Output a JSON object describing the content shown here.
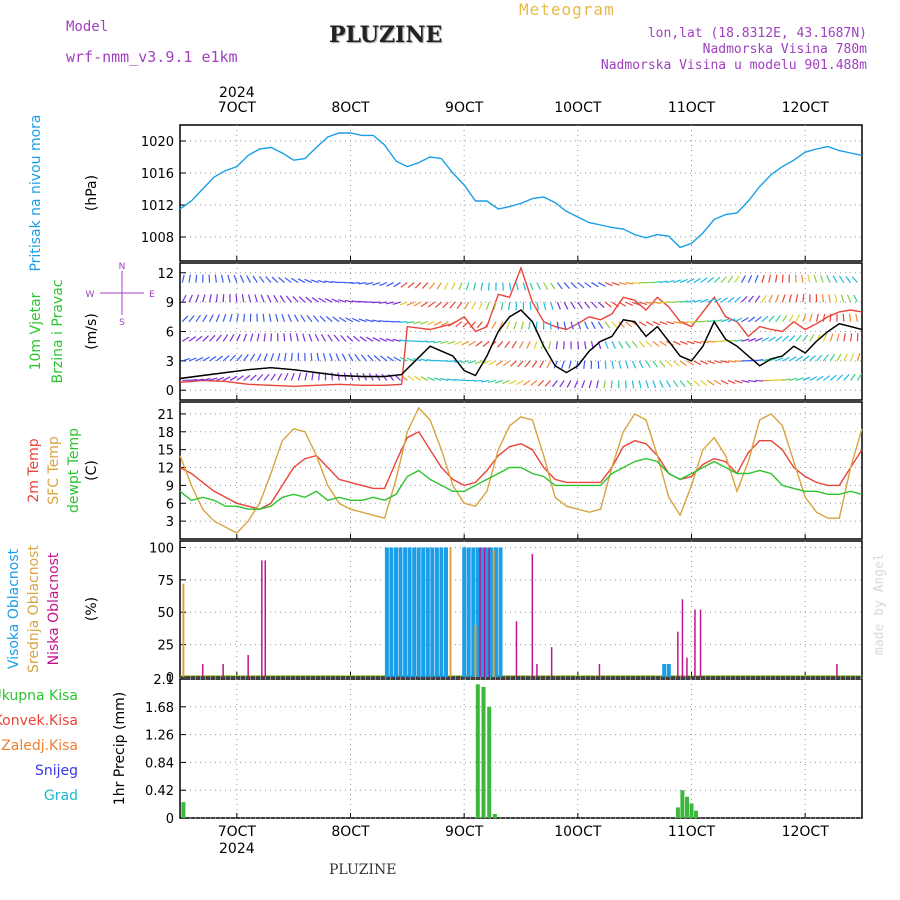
{
  "header": {
    "title": "PLUZINE",
    "subtitle": "Meteogram",
    "model_label": "Model",
    "model_value": "wrf-nmm_v3.9.1  e1km",
    "lonlat": "lon,lat (18.8312E, 43.1687N)",
    "elevation": "Nadmorska Visina 780m",
    "model_elevation": "Nadmorska Visina u modelu 901.488m",
    "footer": "PLUZINE",
    "watermark": "made by Angel"
  },
  "colors": {
    "pressure": "#1a9ee8",
    "temp2m": "#e8443a",
    "sfc": "#d9a440",
    "dew": "#2ec42e",
    "high_cloud": "#1a9ee8",
    "mid_cloud": "#d9a440",
    "low_cloud": "#c0148c",
    "precip": "#3cb83c",
    "wind_mean": "#000000",
    "wind_gust": "#e8443a"
  },
  "time_axis": {
    "year": "2024",
    "ticks": [
      "7OCT",
      "8OCT",
      "9OCT",
      "10OCT",
      "11OCT",
      "12OCT"
    ],
    "tick_pos": [
      7,
      8,
      9,
      10,
      11,
      12
    ],
    "range": [
      6.5,
      12.5
    ]
  },
  "chart_data": [
    {
      "type": "line",
      "name": "pressure",
      "ylabel_left": "Pritisak na nivou mora",
      "unit": "(hPa)",
      "ylim": [
        1005,
        1022
      ],
      "yticks": [
        1008,
        1012,
        1016,
        1020
      ],
      "series": [
        {
          "color_key": "pressure",
          "x": [
            6.5,
            6.6,
            6.7,
            6.8,
            6.9,
            7.0,
            7.1,
            7.2,
            7.3,
            7.4,
            7.5,
            7.6,
            7.7,
            7.8,
            7.9,
            8.0,
            8.1,
            8.2,
            8.3,
            8.4,
            8.5,
            8.6,
            8.7,
            8.8,
            8.9,
            9.0,
            9.1,
            9.2,
            9.3,
            9.4,
            9.5,
            9.6,
            9.7,
            9.8,
            9.9,
            10.0,
            10.1,
            10.2,
            10.3,
            10.4,
            10.5,
            10.6,
            10.7,
            10.8,
            10.9,
            11.0,
            11.1,
            11.2,
            11.3,
            11.4,
            11.5,
            11.6,
            11.7,
            11.8,
            11.9,
            12.0,
            12.1,
            12.2,
            12.3,
            12.4,
            12.5
          ],
          "y": [
            1011.5,
            1012.5,
            1014,
            1015.5,
            1016.3,
            1016.8,
            1018.2,
            1019,
            1019.2,
            1018.5,
            1017.6,
            1017.8,
            1019.2,
            1020.5,
            1021,
            1021,
            1020.7,
            1020.7,
            1019.5,
            1017.5,
            1016.8,
            1017.3,
            1018,
            1017.8,
            1016,
            1014.5,
            1012.5,
            1012.5,
            1011.5,
            1011.8,
            1012.2,
            1012.8,
            1013,
            1012.3,
            1011.2,
            1010.5,
            1009.8,
            1009.5,
            1009.2,
            1009,
            1008.3,
            1007.9,
            1008.3,
            1008.1,
            1006.7,
            1007.2,
            1008.5,
            1010.2,
            1010.8,
            1011,
            1012.5,
            1014.3,
            1015.8,
            1016.8,
            1017.6,
            1018.6,
            1019,
            1019.3,
            1018.8,
            1018.5,
            1018.2
          ]
        }
      ]
    },
    {
      "type": "line",
      "name": "wind",
      "ylabel_left": [
        "10m Vjetar",
        "Brzina i Pravac"
      ],
      "unit": "(m/s)",
      "compass": {
        "n": "N",
        "e": "E",
        "w": "W",
        "s": "S"
      },
      "ylim": [
        -1,
        13
      ],
      "yticks": [
        0,
        3,
        6,
        9,
        12
      ],
      "series": [
        {
          "color_key": "wind_mean",
          "x": [
            6.5,
            6.7,
            6.9,
            7.1,
            7.3,
            7.5,
            7.7,
            7.9,
            8.1,
            8.3,
            8.45,
            8.5,
            8.7,
            8.9,
            9.0,
            9.1,
            9.2,
            9.3,
            9.4,
            9.5,
            9.6,
            9.7,
            9.8,
            9.9,
            10.0,
            10.1,
            10.2,
            10.3,
            10.4,
            10.5,
            10.6,
            10.7,
            10.8,
            10.9,
            11.0,
            11.1,
            11.2,
            11.3,
            11.4,
            11.5,
            11.6,
            11.7,
            11.8,
            11.9,
            12.0,
            12.1,
            12.2,
            12.3,
            12.4,
            12.5
          ],
          "y": [
            1.2,
            1.5,
            1.8,
            2.1,
            2.3,
            2.1,
            1.8,
            1.5,
            1.4,
            1.4,
            1.6,
            2.2,
            4.5,
            3.5,
            2.0,
            1.5,
            3.5,
            6.0,
            7.5,
            8.2,
            7.0,
            4.5,
            2.5,
            1.8,
            2.5,
            4.0,
            5.0,
            5.5,
            7.2,
            7.0,
            5.5,
            6.5,
            5.0,
            3.5,
            3.0,
            4.5,
            7.0,
            5.2,
            4.5,
            3.5,
            2.5,
            3.2,
            3.5,
            4.5,
            3.8,
            5.0,
            6.0,
            6.8,
            6.5,
            6.2
          ]
        },
        {
          "color_key": "wind_gust",
          "x": [
            6.5,
            6.7,
            6.9,
            7.1,
            7.3,
            7.5,
            7.7,
            7.9,
            8.1,
            8.3,
            8.45,
            8.5,
            8.7,
            8.9,
            9.0,
            9.1,
            9.2,
            9.3,
            9.4,
            9.5,
            9.6,
            9.7,
            9.8,
            9.9,
            10.0,
            10.1,
            10.2,
            10.3,
            10.4,
            10.5,
            10.6,
            10.7,
            10.8,
            10.9,
            11.0,
            11.1,
            11.2,
            11.3,
            11.4,
            11.5,
            11.6,
            11.7,
            11.8,
            11.9,
            12.0,
            12.1,
            12.2,
            12.3,
            12.4,
            12.5
          ],
          "y": [
            0.8,
            1.0,
            0.9,
            0.6,
            0.5,
            0.4,
            0.5,
            0.6,
            0.5,
            0.5,
            0.6,
            6.5,
            6.2,
            6.8,
            7.5,
            6.0,
            6.5,
            9.8,
            9.5,
            12.5,
            9.0,
            7.0,
            6.5,
            6.2,
            6.8,
            7.5,
            7.2,
            7.8,
            9.5,
            9.2,
            8.2,
            9.5,
            8.5,
            7.0,
            6.5,
            8.0,
            9.5,
            7.5,
            7.0,
            5.5,
            6.5,
            6.2,
            6.0,
            7.0,
            6.2,
            6.8,
            7.5,
            8.0,
            8.2,
            8.0
          ]
        }
      ]
    },
    {
      "type": "line",
      "name": "temperature",
      "ylabel_left": [
        "2m Temp",
        "SFC Temp",
        "dewpt Temp"
      ],
      "unit": "(C)",
      "ylim": [
        0,
        23
      ],
      "yticks": [
        3,
        6,
        9,
        12,
        15,
        18,
        21
      ],
      "series": [
        {
          "color_key": "temp2m",
          "x": [
            6.5,
            6.6,
            6.7,
            6.8,
            6.9,
            7.0,
            7.1,
            7.2,
            7.3,
            7.4,
            7.5,
            7.6,
            7.7,
            7.8,
            7.9,
            8.0,
            8.1,
            8.2,
            8.3,
            8.4,
            8.5,
            8.6,
            8.7,
            8.8,
            8.9,
            9.0,
            9.1,
            9.2,
            9.3,
            9.4,
            9.5,
            9.6,
            9.7,
            9.8,
            9.9,
            10.0,
            10.1,
            10.2,
            10.3,
            10.4,
            10.5,
            10.6,
            10.7,
            10.8,
            10.9,
            11.0,
            11.1,
            11.2,
            11.3,
            11.4,
            11.5,
            11.6,
            11.7,
            11.8,
            11.9,
            12.0,
            12.1,
            12.2,
            12.3,
            12.4,
            12.5
          ],
          "y": [
            12,
            11,
            9.5,
            8,
            7,
            6,
            5.5,
            5,
            6,
            9,
            12,
            13.5,
            14,
            12,
            10,
            9.5,
            9,
            8.5,
            8.5,
            13,
            17,
            18,
            15,
            12,
            10,
            9,
            9.5,
            11.5,
            14,
            15.5,
            16,
            15,
            12,
            10,
            9.5,
            9.5,
            9.5,
            9.5,
            12,
            15.5,
            16.5,
            16,
            14,
            11,
            10,
            10.5,
            12.5,
            13.5,
            13,
            11,
            14.5,
            16.5,
            16.5,
            15,
            12,
            10.5,
            9.5,
            9,
            9,
            12,
            15
          ]
        },
        {
          "color_key": "sfc",
          "x": [
            6.5,
            6.6,
            6.7,
            6.8,
            6.9,
            7.0,
            7.1,
            7.2,
            7.3,
            7.4,
            7.5,
            7.6,
            7.7,
            7.8,
            7.9,
            8.0,
            8.1,
            8.2,
            8.3,
            8.4,
            8.5,
            8.6,
            8.7,
            8.8,
            8.9,
            9.0,
            9.1,
            9.2,
            9.3,
            9.4,
            9.5,
            9.6,
            9.7,
            9.8,
            9.9,
            10.0,
            10.1,
            10.2,
            10.3,
            10.4,
            10.5,
            10.6,
            10.7,
            10.8,
            10.9,
            11.0,
            11.1,
            11.2,
            11.3,
            11.4,
            11.5,
            11.6,
            11.7,
            11.8,
            11.9,
            12.0,
            12.1,
            12.2,
            12.3,
            12.4,
            12.5
          ],
          "y": [
            14,
            9,
            5,
            3,
            2,
            1,
            3,
            6,
            11,
            16.5,
            18.5,
            18,
            14,
            9,
            6,
            5,
            4.5,
            4,
            3.5,
            10,
            18,
            22,
            20,
            15,
            9,
            6,
            5.5,
            8,
            15,
            19,
            20.5,
            20,
            14,
            7,
            5.5,
            5,
            4.5,
            5,
            12,
            18,
            21,
            20,
            14,
            7,
            4,
            9,
            15,
            17,
            14,
            8,
            13,
            20,
            21,
            19,
            13,
            7,
            4.5,
            3.5,
            3.5,
            12,
            18.5
          ]
        },
        {
          "color_key": "dew",
          "x": [
            6.5,
            6.6,
            6.7,
            6.8,
            6.9,
            7.0,
            7.1,
            7.2,
            7.3,
            7.4,
            7.5,
            7.6,
            7.7,
            7.8,
            7.9,
            8.0,
            8.1,
            8.2,
            8.3,
            8.4,
            8.5,
            8.6,
            8.7,
            8.8,
            8.9,
            9.0,
            9.1,
            9.2,
            9.3,
            9.4,
            9.5,
            9.6,
            9.7,
            9.8,
            9.9,
            10.0,
            10.1,
            10.2,
            10.3,
            10.4,
            10.5,
            10.6,
            10.7,
            10.8,
            10.9,
            11.0,
            11.1,
            11.2,
            11.3,
            11.4,
            11.5,
            11.6,
            11.7,
            11.8,
            11.9,
            12.0,
            12.1,
            12.2,
            12.3,
            12.4,
            12.5
          ],
          "y": [
            8,
            6.5,
            7,
            6.5,
            5.5,
            5.5,
            5,
            5,
            5.5,
            7,
            7.5,
            7,
            8,
            6.5,
            7,
            6.5,
            6.5,
            7,
            6.5,
            7.5,
            10.5,
            11.5,
            10,
            9,
            8,
            8,
            9,
            10,
            11,
            12,
            12,
            11,
            10.5,
            9,
            9,
            9,
            9,
            9,
            11,
            12,
            13,
            13.5,
            13,
            11,
            10,
            11,
            12,
            13,
            12,
            11,
            11,
            11.5,
            11,
            9,
            8.5,
            8,
            8,
            7.5,
            7.5,
            8,
            7.5
          ]
        }
      ]
    },
    {
      "type": "bar",
      "name": "cloud",
      "ylabel_left": [
        "Visoka Oblacnost",
        "Srednja Oblacnost",
        "Niska Oblacnost"
      ],
      "unit": "(%)",
      "ylim": [
        0,
        105
      ],
      "yticks": [
        0,
        25,
        50,
        75,
        100
      ],
      "high_bars": {
        "x": [
          8.32,
          8.36,
          8.4,
          8.44,
          8.48,
          8.52,
          8.56,
          8.6,
          8.64,
          8.68,
          8.72,
          8.76,
          8.8,
          8.84,
          9.0,
          9.04,
          9.08,
          9.12,
          9.16,
          9.2,
          9.24,
          9.28,
          9.32,
          10.76,
          10.8
        ],
        "y": [
          100,
          100,
          100,
          100,
          100,
          100,
          100,
          100,
          100,
          100,
          100,
          100,
          100,
          100,
          100,
          100,
          100,
          100,
          100,
          100,
          100,
          100,
          100,
          10,
          10
        ]
      },
      "mid_bars": {
        "x": [
          6.53,
          8.88,
          9.1,
          9.26
        ],
        "y": [
          72,
          100,
          40,
          98
        ]
      },
      "low_bars": {
        "x": [
          6.7,
          6.88,
          7.1,
          7.22,
          7.25,
          9.14,
          9.18,
          9.22,
          9.46,
          9.6,
          9.64,
          9.77,
          10.19,
          10.88,
          10.92,
          10.96,
          11.03,
          11.08,
          12.28
        ],
        "y": [
          10,
          10,
          17,
          90,
          90,
          100,
          100,
          100,
          43,
          95,
          10,
          23,
          10,
          35,
          60,
          15,
          52,
          52,
          10
        ]
      },
      "baseline": 1
    },
    {
      "type": "bar",
      "name": "precip",
      "ylabel_left": [
        "Ukupna Kisa",
        "Konvek.Kisa",
        "Zaledj.Kisa",
        "Snijeg",
        "Grad"
      ],
      "legend_colors": [
        "#2ec42e",
        "#e8443a",
        "#f08030",
        "#3838e8",
        "#20b8c8"
      ],
      "unit": "1hr Precip (mm)",
      "ylim": [
        0,
        2.1
      ],
      "yticks": [
        0,
        0.42,
        0.84,
        1.26,
        1.68,
        2.1
      ],
      "bars": {
        "x": [
          6.53,
          9.12,
          9.17,
          9.22,
          9.27,
          10.88,
          10.92,
          10.96,
          11.0,
          11.04
        ],
        "y": [
          0.24,
          2.02,
          1.98,
          1.68,
          0.06,
          0.16,
          0.42,
          0.32,
          0.22,
          0.11
        ]
      }
    }
  ]
}
